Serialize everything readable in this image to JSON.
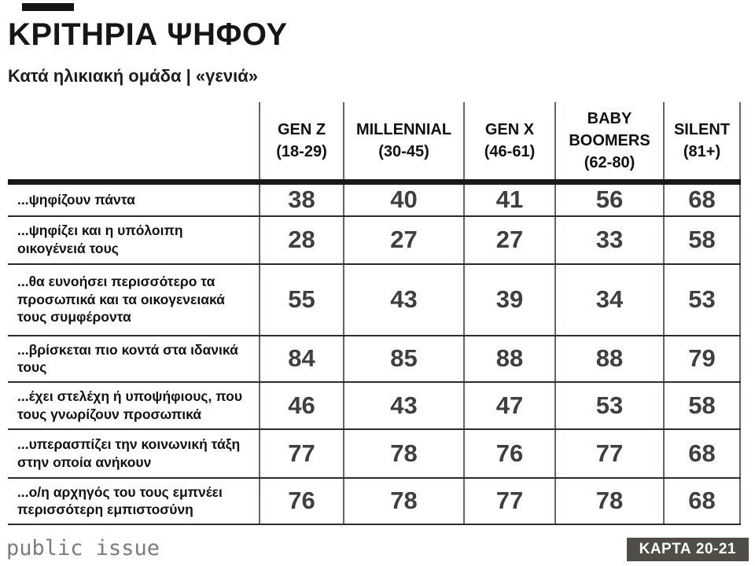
{
  "page": {
    "title": "ΚΡΙΤΗΡΙΑ ΨΗΦΟΥ",
    "subtitle": "Κατά ηλικιακή ομάδα | «γενιά»"
  },
  "chart_data": {
    "type": "table",
    "title": "ΚΡΙΤΗΡΙΑ ΨΗΦΟΥ",
    "subtitle": "Κατά ηλικιακή ομάδα | «γενιά»",
    "columns": [
      {
        "name": "GEN Z",
        "range": "(18-29)"
      },
      {
        "name": "MILLENNIAL",
        "range": "(30-45)"
      },
      {
        "name": "GEN X",
        "range": "(46-61)"
      },
      {
        "name": "BABY BOOMERS",
        "range": "(62-80)"
      },
      {
        "name": "SILENT",
        "range": "(81+)"
      }
    ],
    "rows": [
      {
        "label": "...ψηφίζουν πάντα",
        "values": [
          38,
          40,
          41,
          56,
          68
        ]
      },
      {
        "label": "...ψηφίζει και η υπόλοιπη οικογένειά τους",
        "values": [
          28,
          27,
          27,
          33,
          58
        ]
      },
      {
        "label": "...θα ευνοήσει περισσότερο τα προσωπικά και τα οικογενειακά τους συμφέροντα",
        "values": [
          55,
          43,
          39,
          34,
          53
        ]
      },
      {
        "label": "...βρίσκεται πιο κοντά στα ιδανικά τους",
        "values": [
          84,
          85,
          88,
          88,
          79
        ]
      },
      {
        "label": "...έχει στελέχη ή υποψήφιους, που τους γνωρίζουν προσωπικά",
        "values": [
          46,
          43,
          47,
          53,
          58
        ]
      },
      {
        "label": "...υπερασπίζει την κοινωνική τάξη στην οποία ανήκουν",
        "values": [
          77,
          78,
          76,
          77,
          68
        ]
      },
      {
        "label": "...ο/η αρχηγός του τους εμπνέει περισσότερη εμπιστοσύνη",
        "values": [
          76,
          78,
          77,
          78,
          68
        ]
      }
    ]
  },
  "footer": {
    "logo_text": "public issue",
    "card_label": "ΚΑΡΤΑ 20-21"
  },
  "colors": {
    "badge_bg": "#504d48",
    "number_text": "#3f3f3f",
    "vertical_line": "#5e6678",
    "horizontal_line": "#2d2d2d",
    "logo_gray": "#7b7c80"
  }
}
